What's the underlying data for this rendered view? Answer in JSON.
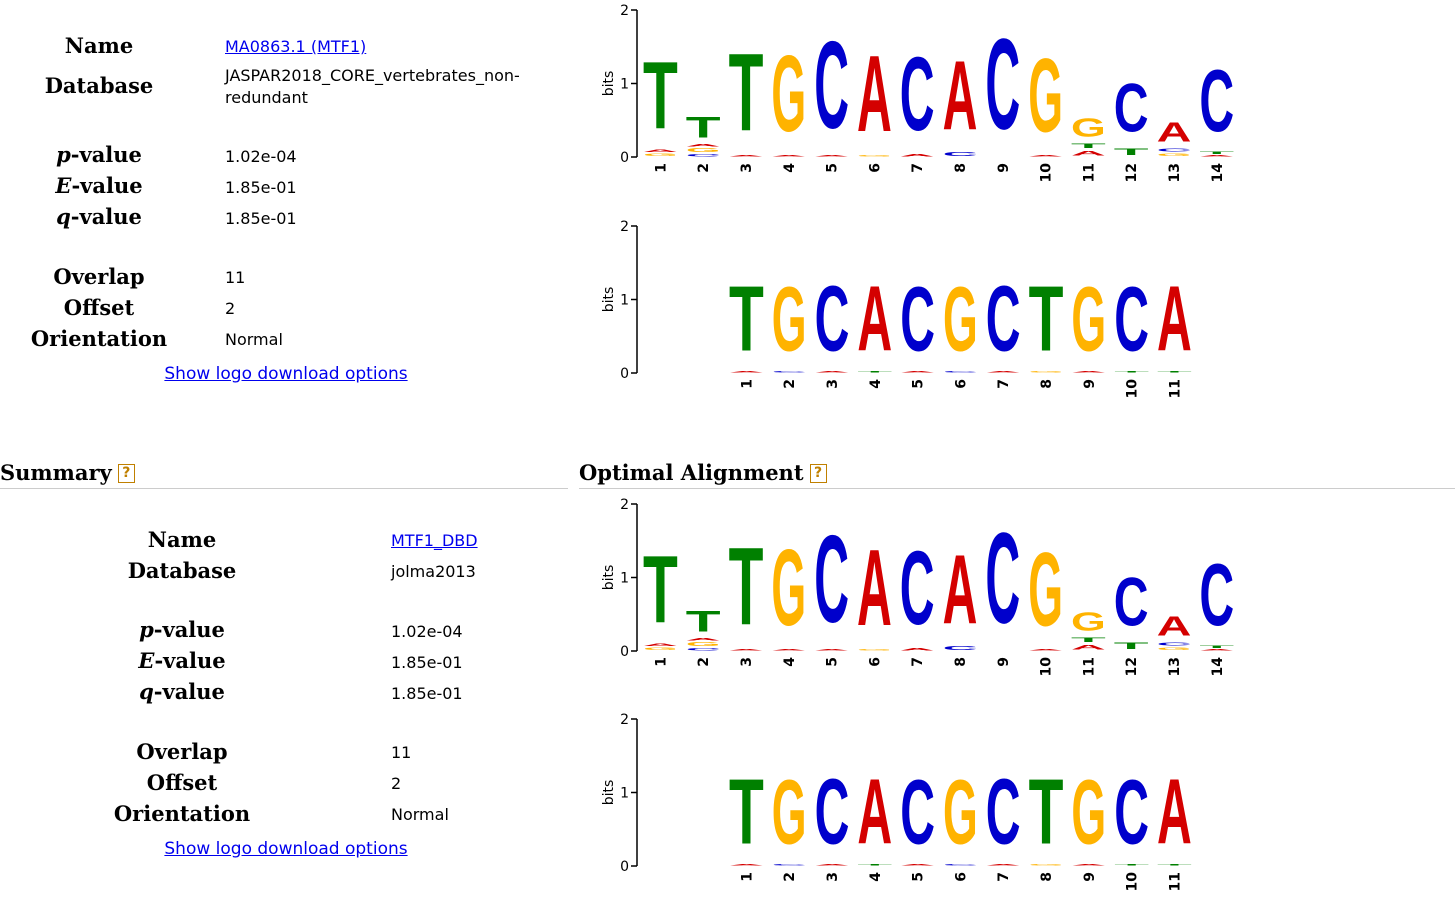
{
  "top_match": {
    "labels": {
      "name": "Name",
      "database": "Database",
      "p_sym": "p",
      "e_sym": "E",
      "q_sym": "q",
      "value_suffix": "-value",
      "overlap": "Overlap",
      "offset": "Offset",
      "orientation": "Orientation"
    },
    "name_link": "MA0863.1 (MTF1)",
    "database": "JASPAR2018_CORE_vertebrates_non-redundant",
    "p_value": "1.02e-04",
    "e_value": "1.85e-01",
    "q_value": "1.85e-01",
    "overlap": "11",
    "offset": "2",
    "orientation": "Normal",
    "download_link": "Show logo download options"
  },
  "summary": {
    "title": "Summary",
    "help_icon": "?",
    "labels": {
      "name": "Name",
      "database": "Database",
      "p_sym": "p",
      "e_sym": "E",
      "q_sym": "q",
      "value_suffix": "-value",
      "overlap": "Overlap",
      "offset": "Offset",
      "orientation": "Orientation"
    },
    "name_link": "MTF1_DBD",
    "database": "jolma2013",
    "p_value": "1.02e-04",
    "e_value": "1.85e-01",
    "q_value": "1.85e-01",
    "overlap": "11",
    "offset": "2",
    "orientation": "Normal",
    "download_link": "Show logo download options"
  },
  "optimal_alignment": {
    "title": "Optimal Alignment",
    "help_icon": "?"
  },
  "colors": {
    "A": "#d40000",
    "C": "#0000cc",
    "G": "#ffb300",
    "T": "#008000",
    "link": "#0000ee",
    "help": "#c08000"
  },
  "chart_data": [
    {
      "type": "sequence-logo",
      "ylabel": "bits",
      "ylim": [
        0,
        2
      ],
      "yticks": [
        "0",
        "1",
        "2"
      ],
      "positions": [
        "1",
        "2",
        "3",
        "4",
        "5",
        "6",
        "7",
        "8",
        "9",
        "10",
        "11",
        "12",
        "13",
        "14"
      ],
      "stacks": [
        [
          {
            "b": "G",
            "h": 0.06
          },
          {
            "b": "A",
            "h": 0.05
          },
          {
            "b": "T",
            "h": 1.45
          }
        ],
        [
          {
            "b": "C",
            "h": 0.05
          },
          {
            "b": "G",
            "h": 0.08
          },
          {
            "b": "A",
            "h": 0.05
          },
          {
            "b": "T",
            "h": 0.45
          }
        ],
        [
          {
            "b": "A",
            "h": 0.03
          },
          {
            "b": "T",
            "h": 1.68
          }
        ],
        [
          {
            "b": "A",
            "h": 0.03
          },
          {
            "b": "G",
            "h": 1.65
          }
        ],
        [
          {
            "b": "A",
            "h": 0.02
          },
          {
            "b": "C",
            "h": 1.9
          }
        ],
        [
          {
            "b": "G",
            "h": 0.03
          },
          {
            "b": "A",
            "h": 1.65
          }
        ],
        [
          {
            "b": "A",
            "h": 0.05
          },
          {
            "b": "C",
            "h": 1.6
          }
        ],
        [
          {
            "b": "C",
            "h": 0.08
          },
          {
            "b": "A",
            "h": 1.5
          }
        ],
        [
          {
            "b": "C",
            "h": 1.97
          }
        ],
        [
          {
            "b": "A",
            "h": 0.03
          },
          {
            "b": "G",
            "h": 1.6
          }
        ],
        [
          {
            "b": "A",
            "h": 0.1
          },
          {
            "b": "T",
            "h": 0.1
          },
          {
            "b": "G",
            "h": 0.4
          }
        ],
        [
          {
            "b": "T",
            "h": 0.14
          },
          {
            "b": "C",
            "h": 1.05
          }
        ],
        [
          {
            "b": "G",
            "h": 0.06
          },
          {
            "b": "C",
            "h": 0.07
          },
          {
            "b": "A",
            "h": 0.42
          }
        ],
        [
          {
            "b": "A",
            "h": 0.03
          },
          {
            "b": "T",
            "h": 0.06
          },
          {
            "b": "C",
            "h": 1.35
          }
        ]
      ]
    },
    {
      "type": "sequence-logo",
      "ylabel": "bits",
      "ylim": [
        0,
        2
      ],
      "yticks": [
        "0",
        "1",
        "2"
      ],
      "positions": [
        "1",
        "2",
        "3",
        "4",
        "5",
        "6",
        "7",
        "8",
        "9",
        "10",
        "11"
      ],
      "stacks": [
        [
          {
            "b": "A",
            "h": 0.03
          },
          {
            "b": "T",
            "h": 1.42
          }
        ],
        [
          {
            "b": "C",
            "h": 0.03
          },
          {
            "b": "G",
            "h": 1.4
          }
        ],
        [
          {
            "b": "A",
            "h": 0.03
          },
          {
            "b": "C",
            "h": 1.42
          }
        ],
        [
          {
            "b": "T",
            "h": 0.03
          },
          {
            "b": "A",
            "h": 1.42
          }
        ],
        [
          {
            "b": "A",
            "h": 0.03
          },
          {
            "b": "C",
            "h": 1.4
          }
        ],
        [
          {
            "b": "C",
            "h": 0.03
          },
          {
            "b": "G",
            "h": 1.4
          }
        ],
        [
          {
            "b": "A",
            "h": 0.03
          },
          {
            "b": "C",
            "h": 1.42
          }
        ],
        [
          {
            "b": "G",
            "h": 0.03
          },
          {
            "b": "T",
            "h": 1.42
          }
        ],
        [
          {
            "b": "A",
            "h": 0.03
          },
          {
            "b": "G",
            "h": 1.4
          }
        ],
        [
          {
            "b": "T",
            "h": 0.03
          },
          {
            "b": "C",
            "h": 1.4
          }
        ],
        [
          {
            "b": "T",
            "h": 0.03
          },
          {
            "b": "A",
            "h": 1.42
          }
        ]
      ]
    },
    {
      "type": "sequence-logo",
      "ylabel": "bits",
      "ylim": [
        0,
        2
      ],
      "yticks": [
        "0",
        "1",
        "2"
      ],
      "positions": [
        "1",
        "2",
        "3",
        "4",
        "5",
        "6",
        "7",
        "8",
        "9",
        "10",
        "11",
        "12",
        "13",
        "14"
      ],
      "stacks": [
        [
          {
            "b": "G",
            "h": 0.06
          },
          {
            "b": "A",
            "h": 0.05
          },
          {
            "b": "T",
            "h": 1.45
          }
        ],
        [
          {
            "b": "C",
            "h": 0.05
          },
          {
            "b": "G",
            "h": 0.08
          },
          {
            "b": "A",
            "h": 0.05
          },
          {
            "b": "T",
            "h": 0.45
          }
        ],
        [
          {
            "b": "A",
            "h": 0.03
          },
          {
            "b": "T",
            "h": 1.68
          }
        ],
        [
          {
            "b": "A",
            "h": 0.03
          },
          {
            "b": "G",
            "h": 1.65
          }
        ],
        [
          {
            "b": "A",
            "h": 0.02
          },
          {
            "b": "C",
            "h": 1.9
          }
        ],
        [
          {
            "b": "G",
            "h": 0.03
          },
          {
            "b": "A",
            "h": 1.65
          }
        ],
        [
          {
            "b": "A",
            "h": 0.05
          },
          {
            "b": "C",
            "h": 1.6
          }
        ],
        [
          {
            "b": "C",
            "h": 0.08
          },
          {
            "b": "A",
            "h": 1.5
          }
        ],
        [
          {
            "b": "C",
            "h": 1.97
          }
        ],
        [
          {
            "b": "A",
            "h": 0.03
          },
          {
            "b": "G",
            "h": 1.6
          }
        ],
        [
          {
            "b": "A",
            "h": 0.1
          },
          {
            "b": "T",
            "h": 0.1
          },
          {
            "b": "G",
            "h": 0.4
          }
        ],
        [
          {
            "b": "T",
            "h": 0.14
          },
          {
            "b": "C",
            "h": 1.05
          }
        ],
        [
          {
            "b": "G",
            "h": 0.06
          },
          {
            "b": "C",
            "h": 0.07
          },
          {
            "b": "A",
            "h": 0.42
          }
        ],
        [
          {
            "b": "A",
            "h": 0.03
          },
          {
            "b": "T",
            "h": 0.06
          },
          {
            "b": "C",
            "h": 1.35
          }
        ]
      ]
    },
    {
      "type": "sequence-logo",
      "ylabel": "bits",
      "ylim": [
        0,
        2
      ],
      "yticks": [
        "0",
        "1",
        "2"
      ],
      "positions": [
        "1",
        "2",
        "3",
        "4",
        "5",
        "6",
        "7",
        "8",
        "9",
        "10",
        "11"
      ],
      "stacks": [
        [
          {
            "b": "A",
            "h": 0.03
          },
          {
            "b": "T",
            "h": 1.42
          }
        ],
        [
          {
            "b": "C",
            "h": 0.03
          },
          {
            "b": "G",
            "h": 1.4
          }
        ],
        [
          {
            "b": "A",
            "h": 0.03
          },
          {
            "b": "C",
            "h": 1.42
          }
        ],
        [
          {
            "b": "T",
            "h": 0.03
          },
          {
            "b": "A",
            "h": 1.42
          }
        ],
        [
          {
            "b": "A",
            "h": 0.03
          },
          {
            "b": "C",
            "h": 1.4
          }
        ],
        [
          {
            "b": "C",
            "h": 0.03
          },
          {
            "b": "G",
            "h": 1.4
          }
        ],
        [
          {
            "b": "A",
            "h": 0.03
          },
          {
            "b": "C",
            "h": 1.42
          }
        ],
        [
          {
            "b": "G",
            "h": 0.03
          },
          {
            "b": "T",
            "h": 1.42
          }
        ],
        [
          {
            "b": "A",
            "h": 0.03
          },
          {
            "b": "G",
            "h": 1.4
          }
        ],
        [
          {
            "b": "T",
            "h": 0.03
          },
          {
            "b": "C",
            "h": 1.4
          }
        ],
        [
          {
            "b": "T",
            "h": 0.03
          },
          {
            "b": "A",
            "h": 1.42
          }
        ]
      ]
    }
  ]
}
